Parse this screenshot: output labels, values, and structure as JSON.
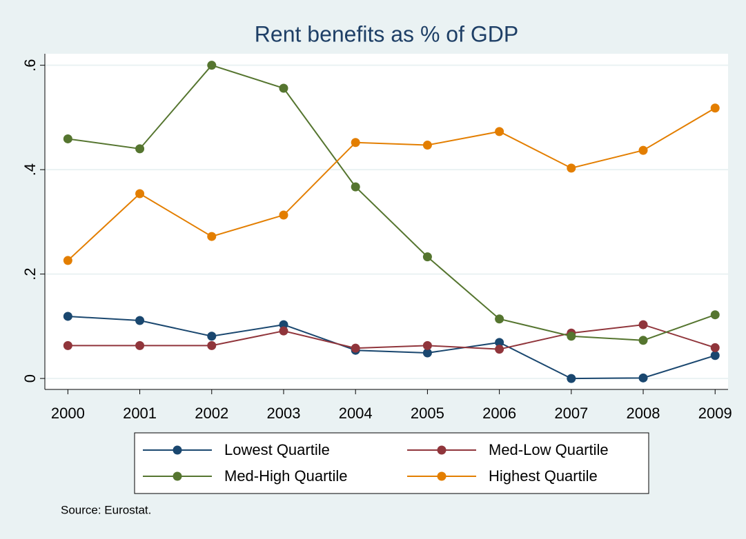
{
  "chart_data": {
    "type": "line",
    "title": "Rent benefits as % of GDP",
    "x": [
      2000,
      2001,
      2002,
      2003,
      2004,
      2005,
      2006,
      2007,
      2008,
      2009
    ],
    "series": [
      {
        "name": "Lowest Quartile",
        "color": "#1a476f",
        "values": [
          0.119,
          0.111,
          0.081,
          0.103,
          0.054,
          0.049,
          0.069,
          0,
          0.001,
          0.044
        ]
      },
      {
        "name": "Med-Low Quartile",
        "color": "#90353b",
        "values": [
          0.063,
          0.063,
          0.063,
          0.091,
          0.058,
          0.063,
          0.056,
          0.087,
          0.103,
          0.059
        ]
      },
      {
        "name": "Med-High Quartile",
        "color": "#55752f",
        "values": [
          0.459,
          0.44,
          0.6,
          0.556,
          0.367,
          0.233,
          0.114,
          0.081,
          0.073,
          0.122
        ]
      },
      {
        "name": "Highest Quartile",
        "color": "#e37e00",
        "values": [
          0.226,
          0.354,
          0.272,
          0.313,
          0.452,
          0.447,
          0.473,
          0.403,
          0.437,
          0.518
        ]
      }
    ],
    "xlim": [
      1999.68,
      2009.18
    ],
    "xticks": [
      2000,
      2001,
      2002,
      2003,
      2004,
      2005,
      2006,
      2007,
      2008,
      2009
    ],
    "ylim": [
      -0.021,
      0.622
    ],
    "yticks": [
      {
        "value": 0,
        "label": "0"
      },
      {
        "value": 0.2,
        "label": ".2"
      },
      {
        "value": 0.4,
        "label": ".4"
      },
      {
        "value": 0.6,
        "label": ".6"
      }
    ],
    "grid": true,
    "note": "Source: Eurostat."
  }
}
